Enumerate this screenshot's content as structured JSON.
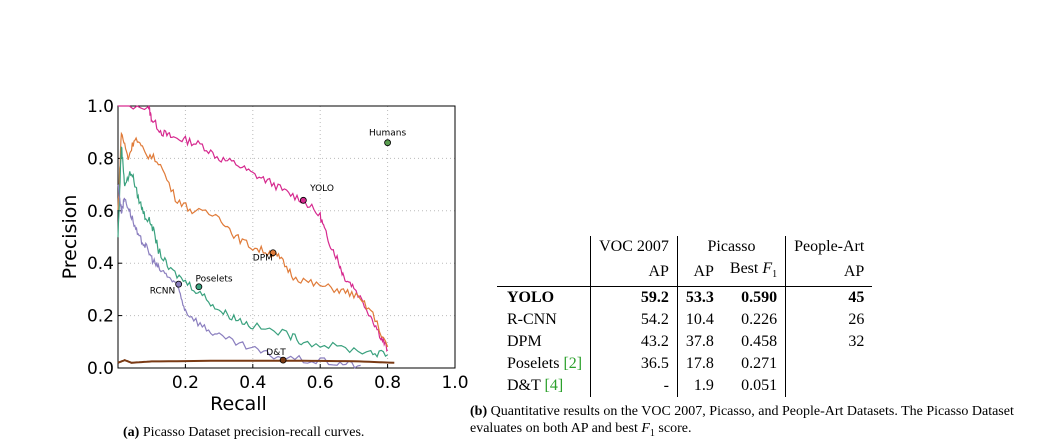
{
  "chart_data": {
    "type": "line",
    "xlabel": "Recall",
    "ylabel": "Precision",
    "xlim": [
      0.0,
      1.0
    ],
    "ylim": [
      0.0,
      1.0
    ],
    "x_ticks": [
      "0.2",
      "0.4",
      "0.6",
      "0.8",
      "1.0"
    ],
    "y_ticks": [
      "0.0",
      "0.2",
      "0.4",
      "0.6",
      "0.8",
      "1.0"
    ],
    "grid": true,
    "series": [
      {
        "name": "YOLO",
        "color": "#d62a8f",
        "points": [
          [
            0.0,
            1.0
          ],
          [
            0.09,
            1.0
          ],
          [
            0.1,
            0.95
          ],
          [
            0.13,
            0.9
          ],
          [
            0.16,
            0.88
          ],
          [
            0.2,
            0.87
          ],
          [
            0.25,
            0.85
          ],
          [
            0.3,
            0.8
          ],
          [
            0.35,
            0.78
          ],
          [
            0.4,
            0.74
          ],
          [
            0.45,
            0.71
          ],
          [
            0.5,
            0.67
          ],
          [
            0.55,
            0.64
          ],
          [
            0.6,
            0.58
          ],
          [
            0.62,
            0.5
          ],
          [
            0.65,
            0.42
          ],
          [
            0.67,
            0.35
          ],
          [
            0.7,
            0.31
          ],
          [
            0.75,
            0.2
          ],
          [
            0.78,
            0.12
          ],
          [
            0.8,
            0.07
          ]
        ],
        "marker": [
          0.55,
          0.64
        ]
      },
      {
        "name": "DPM",
        "color": "#e07b39",
        "points": [
          [
            0.0,
            0.6
          ],
          [
            0.01,
            0.9
          ],
          [
            0.03,
            0.8
          ],
          [
            0.05,
            0.88
          ],
          [
            0.08,
            0.82
          ],
          [
            0.12,
            0.79
          ],
          [
            0.17,
            0.65
          ],
          [
            0.22,
            0.6
          ],
          [
            0.3,
            0.58
          ],
          [
            0.35,
            0.5
          ],
          [
            0.4,
            0.46
          ],
          [
            0.45,
            0.44
          ],
          [
            0.48,
            0.42
          ],
          [
            0.52,
            0.35
          ],
          [
            0.58,
            0.32
          ],
          [
            0.65,
            0.3
          ],
          [
            0.7,
            0.28
          ],
          [
            0.75,
            0.22
          ],
          [
            0.8,
            0.08
          ]
        ],
        "marker": [
          0.46,
          0.44
        ]
      },
      {
        "name": "Poselets",
        "color": "#3aa17e",
        "points": [
          [
            0.0,
            0.5
          ],
          [
            0.01,
            0.85
          ],
          [
            0.02,
            0.7
          ],
          [
            0.04,
            0.75
          ],
          [
            0.06,
            0.65
          ],
          [
            0.08,
            0.58
          ],
          [
            0.1,
            0.55
          ],
          [
            0.12,
            0.45
          ],
          [
            0.15,
            0.38
          ],
          [
            0.2,
            0.33
          ],
          [
            0.25,
            0.28
          ],
          [
            0.3,
            0.22
          ],
          [
            0.35,
            0.19
          ],
          [
            0.4,
            0.16
          ],
          [
            0.5,
            0.13
          ],
          [
            0.55,
            0.1
          ],
          [
            0.65,
            0.08
          ],
          [
            0.75,
            0.06
          ],
          [
            0.8,
            0.05
          ]
        ],
        "marker": [
          0.24,
          0.31
        ]
      },
      {
        "name": "RCNN",
        "color": "#8b7fbf",
        "points": [
          [
            0.0,
            0.7
          ],
          [
            0.01,
            0.6
          ],
          [
            0.02,
            0.65
          ],
          [
            0.04,
            0.58
          ],
          [
            0.06,
            0.5
          ],
          [
            0.08,
            0.47
          ],
          [
            0.1,
            0.42
          ],
          [
            0.12,
            0.38
          ],
          [
            0.15,
            0.35
          ],
          [
            0.18,
            0.3
          ],
          [
            0.2,
            0.22
          ],
          [
            0.25,
            0.16
          ],
          [
            0.3,
            0.12
          ],
          [
            0.38,
            0.08
          ],
          [
            0.45,
            0.05
          ],
          [
            0.55,
            0.03
          ],
          [
            0.65,
            0.02
          ],
          [
            0.72,
            0.01
          ]
        ],
        "marker": [
          0.18,
          0.32
        ]
      },
      {
        "name": "D&T",
        "color": "#7a3a14",
        "points": [
          [
            0.0,
            0.02
          ],
          [
            0.02,
            0.03
          ],
          [
            0.04,
            0.02
          ],
          [
            0.1,
            0.025
          ],
          [
            0.3,
            0.028
          ],
          [
            0.5,
            0.028
          ],
          [
            0.7,
            0.026
          ],
          [
            0.82,
            0.02
          ]
        ],
        "marker": [
          0.49,
          0.03
        ]
      }
    ],
    "humans": {
      "name": "Humans",
      "x": 0.8,
      "y": 0.86,
      "color": "#5a9e50"
    }
  },
  "caption_a": {
    "label": "(a)",
    "text": " Picasso Dataset precision-recall curves."
  },
  "caption_b": {
    "label": "(b)",
    "text_1": " Quantitative results on the VOC 2007, Picasso, and People-Art Datasets. The Picasso Dataset evaluates on both AP and best ",
    "f": "F",
    "sub": "1",
    "text_2": " score."
  },
  "table": {
    "header_groups": [
      "VOC 2007",
      "Picasso",
      "People-Art"
    ],
    "subheaders": {
      "voc": "AP",
      "picasso_ap": "AP",
      "picasso_best": "Best ",
      "f": "F",
      "sub": "1",
      "people": "AP"
    },
    "rows": [
      {
        "method": "YOLO",
        "cite": "",
        "voc": "59.2",
        "picasso_ap": "53.3",
        "picasso_f1": "0.590",
        "people": "45"
      },
      {
        "method": "R-CNN",
        "cite": "",
        "voc": "54.2",
        "picasso_ap": "10.4",
        "picasso_f1": "0.226",
        "people": "26"
      },
      {
        "method": "DPM",
        "cite": "",
        "voc": "43.2",
        "picasso_ap": "37.8",
        "picasso_f1": "0.458",
        "people": "32"
      },
      {
        "method": "Poselets ",
        "cite": "[2]",
        "voc": "36.5",
        "picasso_ap": "17.8",
        "picasso_f1": "0.271",
        "people": ""
      },
      {
        "method": "D&T ",
        "cite": "[4]",
        "voc": "-",
        "picasso_ap": "1.9",
        "picasso_f1": "0.051",
        "people": ""
      }
    ]
  }
}
